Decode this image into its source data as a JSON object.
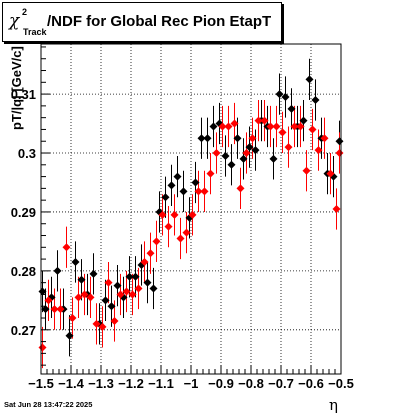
{
  "title": {
    "symbol": "χ",
    "superscript": "2",
    "subscript": "Track",
    "text": "/NDF for Global Rec Pion EtapT"
  },
  "timestamp": "Sat Jun 28 13:47:22 2025",
  "chart_data": {
    "type": "scatter",
    "title": "χ²_Track/NDF for Global Rec Pion EtapT",
    "xlabel": "η",
    "ylabel": "pT/|q| [GeV/c]",
    "xlim": [
      -1.5,
      -0.5
    ],
    "ylim": [
      0.2625,
      0.3185
    ],
    "grid": true,
    "x_ticks": [
      -1.5,
      -1.4,
      -1.3,
      -1.2,
      -1.1,
      -1.0,
      -0.9,
      -0.8,
      -0.7,
      -0.6,
      -0.5
    ],
    "x_tick_labels": [
      "−1.5",
      "−1.4",
      "−1.3",
      "−1.2",
      "−1.1",
      "−1",
      "−0.9",
      "−0.8",
      "−0.7",
      "−0.6",
      "−0.5"
    ],
    "y_ticks": [
      0.27,
      0.28,
      0.29,
      0.3,
      0.31
    ],
    "y_tick_labels": [
      "0.27",
      "0.28",
      "0.29",
      "0.3",
      "0.31"
    ],
    "series": [
      {
        "color": "#000000",
        "x": [
          -1.495,
          -1.485,
          -1.465,
          -1.445,
          -1.425,
          -1.405,
          -1.385,
          -1.365,
          -1.345,
          -1.325,
          -1.305,
          -1.285,
          -1.265,
          -1.245,
          -1.225,
          -1.205,
          -1.185,
          -1.165,
          -1.145,
          -1.125,
          -1.105,
          -1.085,
          -1.065,
          -1.045,
          -1.025,
          -1.005,
          -0.985,
          -0.965,
          -0.945,
          -0.925,
          -0.905,
          -0.885,
          -0.865,
          -0.845,
          -0.825,
          -0.805,
          -0.785,
          -0.765,
          -0.745,
          -0.725,
          -0.705,
          -0.685,
          -0.665,
          -0.645,
          -0.625,
          -0.605,
          -0.585,
          -0.565,
          -0.545,
          -0.525,
          -0.505
        ],
        "y": [
          0.2765,
          0.2735,
          0.2755,
          0.28,
          0.2735,
          0.269,
          0.2815,
          0.2785,
          0.276,
          0.2795,
          0.271,
          0.275,
          0.274,
          0.2775,
          0.2755,
          0.279,
          0.279,
          0.281,
          0.278,
          0.277,
          0.29,
          0.2925,
          0.2945,
          0.296,
          0.2935,
          0.289,
          0.295,
          0.3025,
          0.3025,
          0.3045,
          0.305,
          0.2995,
          0.298,
          0.3025,
          0.299,
          0.301,
          0.3005,
          0.3055,
          0.3045,
          0.299,
          0.31,
          0.3095,
          0.3075,
          0.3045,
          0.3055,
          0.3125,
          0.309,
          0.3025,
          0.2965,
          0.296,
          0.302
        ],
        "yerr": [
          0.0035,
          0.0035,
          0.0035,
          0.0035,
          0.0035,
          0.0035,
          0.0035,
          0.0035,
          0.0035,
          0.0035,
          0.0035,
          0.0035,
          0.0035,
          0.0035,
          0.0035,
          0.0035,
          0.0035,
          0.0035,
          0.0035,
          0.0035,
          0.0035,
          0.0035,
          0.0035,
          0.0035,
          0.0035,
          0.0035,
          0.0035,
          0.0035,
          0.0035,
          0.0035,
          0.0035,
          0.0035,
          0.0035,
          0.0035,
          0.0035,
          0.0035,
          0.0035,
          0.0035,
          0.0035,
          0.0035,
          0.0035,
          0.0035,
          0.0035,
          0.0035,
          0.0035,
          0.0035,
          0.0035,
          0.0035,
          0.0035,
          0.0035,
          0.0035
        ]
      },
      {
        "color": "#ff0000",
        "x": [
          -1.495,
          -1.475,
          -1.455,
          -1.435,
          -1.415,
          -1.395,
          -1.375,
          -1.355,
          -1.335,
          -1.315,
          -1.295,
          -1.275,
          -1.255,
          -1.235,
          -1.215,
          -1.195,
          -1.175,
          -1.155,
          -1.135,
          -1.115,
          -1.095,
          -1.075,
          -1.055,
          -1.035,
          -1.015,
          -0.995,
          -0.975,
          -0.955,
          -0.935,
          -0.915,
          -0.895,
          -0.875,
          -0.855,
          -0.835,
          -0.815,
          -0.795,
          -0.775,
          -0.755,
          -0.735,
          -0.715,
          -0.695,
          -0.675,
          -0.655,
          -0.635,
          -0.615,
          -0.595,
          -0.575,
          -0.555,
          -0.535,
          -0.515,
          -0.505
        ],
        "y": [
          0.267,
          0.275,
          0.2735,
          0.2735,
          0.284,
          0.272,
          0.2755,
          0.276,
          0.2755,
          0.271,
          0.2705,
          0.278,
          0.2715,
          0.276,
          0.2765,
          0.276,
          0.277,
          0.2815,
          0.283,
          0.285,
          0.2895,
          0.2875,
          0.2895,
          0.2855,
          0.2865,
          0.2895,
          0.2935,
          0.2935,
          0.2965,
          0.3,
          0.3045,
          0.3045,
          0.305,
          0.294,
          0.3,
          0.3025,
          0.3055,
          0.3055,
          0.3045,
          0.3045,
          0.3035,
          0.301,
          0.3045,
          0.3045,
          0.297,
          0.304,
          0.3005,
          0.3025,
          0.2965,
          0.2905,
          0.3
        ],
        "yerr": [
          0.0035,
          0.0035,
          0.0035,
          0.0035,
          0.0035,
          0.0035,
          0.0035,
          0.0035,
          0.0035,
          0.0035,
          0.0035,
          0.0035,
          0.0035,
          0.0035,
          0.0035,
          0.0035,
          0.0035,
          0.0035,
          0.0035,
          0.0035,
          0.0035,
          0.0035,
          0.0035,
          0.0035,
          0.0035,
          0.0035,
          0.0035,
          0.0035,
          0.0035,
          0.0035,
          0.0035,
          0.0035,
          0.0035,
          0.0035,
          0.0035,
          0.0035,
          0.0035,
          0.0035,
          0.0035,
          0.0035,
          0.0035,
          0.0035,
          0.0035,
          0.0035,
          0.0035,
          0.0035,
          0.0035,
          0.0035,
          0.0035,
          0.0035,
          0.0035
        ]
      }
    ]
  }
}
